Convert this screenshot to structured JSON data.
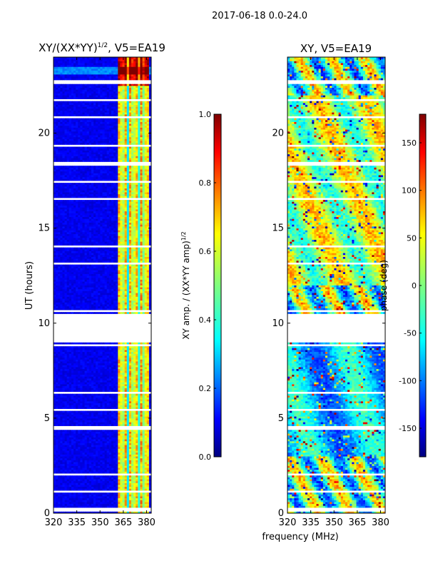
{
  "figure": {
    "suptitle": "2017-06-18 0.0-24.0",
    "xlabel": "frequency (MHz)"
  },
  "chart_data": [
    {
      "type": "heatmap",
      "title_base": "XY/(XX*YY)",
      "title_exp": "1/2",
      "title_suffix": ", V5=EA19",
      "ylabel": "UT (hours)",
      "xlim": [
        320,
        383
      ],
      "ylim": [
        0,
        24
      ],
      "xticks": [
        320,
        335,
        350,
        365,
        380
      ],
      "yticks": [
        0,
        5,
        10,
        15,
        20
      ],
      "colorbar": {
        "label_base": "XY amp. / (XX*YY amp)",
        "label_exp": "1/2",
        "range": [
          0.0,
          1.0
        ],
        "ticks": [
          "0.0",
          "0.2",
          "0.4",
          "0.6",
          "0.8",
          "1.0"
        ],
        "colormap": "jet"
      },
      "data_summary": "low amplitude (~0.05-0.15) across 320-360 MHz; bright vertical channel features (0.4-1.0) at ~361-380 MHz; no data (gap) at ~8.9-10.4 UT and at many flagged time rows"
    },
    {
      "type": "heatmap",
      "title": "XY, V5=EA19",
      "xlim": [
        320,
        383
      ],
      "ylim": [
        0,
        24
      ],
      "xticks": [
        320,
        335,
        350,
        365,
        380
      ],
      "yticks": [
        0,
        5,
        10,
        15,
        20
      ],
      "colorbar": {
        "label": "phase (deg)",
        "range": [
          -180,
          180
        ],
        "ticks": [
          "-150",
          "-100",
          "-50",
          "0",
          "50",
          "100",
          "150"
        ],
        "colormap": "jet"
      },
      "data_summary": "noisy phase spanning -180 to 180 deg; mostly near 0 to +100 deg during 12-22 UT, mostly negative during 3-9 UT; same flagged time gaps as the amplitude panel"
    }
  ],
  "colors": {
    "jet": [
      "#00007f",
      "#0000ff",
      "#007fff",
      "#00ffff",
      "#7fff7f",
      "#ffff00",
      "#ff7f00",
      "#ff0000",
      "#7f0000"
    ],
    "axis": "#000000",
    "gap": "#ffffff"
  }
}
